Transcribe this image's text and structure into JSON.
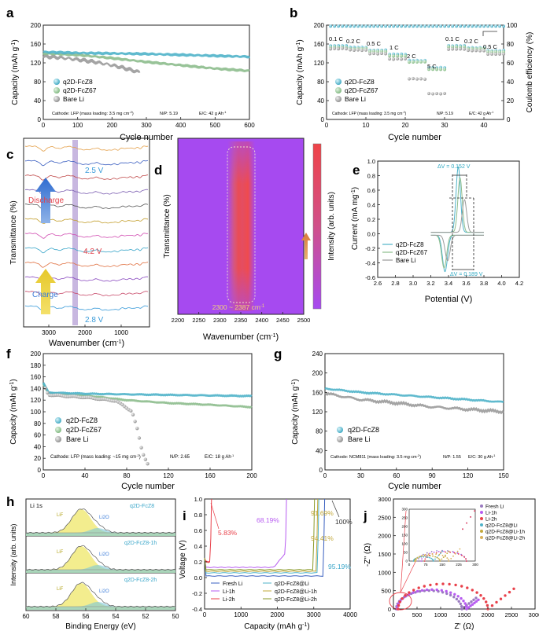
{
  "colors": {
    "fcz8": "#4fb3c9",
    "fcz67": "#8dbd8d",
    "bare": "#9a9a9a",
    "purple": "#b75cf0",
    "red": "#e8404a",
    "orange": "#e0a44c"
  },
  "panels": {
    "a": {
      "label": "a",
      "ylabel": "Capacity (mAh g",
      "xlabel": "Cycle number",
      "xticks": [
        "0",
        "100",
        "200",
        "300",
        "400",
        "500",
        "600"
      ],
      "yticks": [
        "0",
        "40",
        "80",
        "120",
        "160",
        "200"
      ],
      "legend": [
        "q2D-FcZ8",
        "q2D-FcZ67",
        "Bare Li"
      ],
      "info": [
        "Cathode: LFP (mass loading: 3.5 mg cm",
        "N/P: 5.19",
        "E/C: 42 g Ah"
      ],
      "chart_data": {
        "type": "line",
        "xlim": [
          0,
          600
        ],
        "ylim": [
          0,
          200
        ],
        "series": [
          {
            "name": "q2D-FcZ8",
            "x": [
              0,
              100,
              200,
              300,
              400,
              500,
              600
            ],
            "values": [
              143,
              141,
              140,
              139,
              137,
              135,
              133
            ]
          },
          {
            "name": "q2D-FcZ67",
            "x": [
              0,
              100,
              200,
              300,
              400,
              500,
              600
            ],
            "values": [
              140,
              137,
              130,
              122,
              115,
              108,
              103
            ]
          },
          {
            "name": "Bare Li",
            "x": [
              0,
              50,
              100,
              150,
              200,
              230,
              260,
              280
            ],
            "values": [
              134,
              131,
              127,
              122,
              115,
              110,
              104,
              100
            ]
          }
        ]
      }
    },
    "b": {
      "label": "b",
      "ylabel": "Capacity (mAh g",
      "y2label": "Coulomb efficiency (%)",
      "xlabel": "Cycle number",
      "xticks": [
        "0",
        "10",
        "20",
        "30",
        "40"
      ],
      "yticks": [
        "0",
        "40",
        "80",
        "120",
        "160",
        "200"
      ],
      "y2ticks": [
        "0",
        "20",
        "40",
        "60",
        "80",
        "100"
      ],
      "rates": [
        "0.1 C",
        "0.2 C",
        "0.5 C",
        "1 C",
        "2 C",
        "5 C",
        "0.1 C",
        "0.2 C",
        "0.5 C"
      ],
      "legend": [
        "q2D-FcZ8",
        "q2D-FcZ67",
        "Bare Li"
      ],
      "info": [
        "Cathode: LFP (mass loading: 3.5 mg cm",
        "N/P: 5.19",
        "E/C: 42 g Ah"
      ],
      "chart_data": {
        "type": "scatter",
        "xlim": [
          0,
          45
        ],
        "ylim": [
          0,
          200
        ],
        "steps": [
          {
            "rate": "0.1 C",
            "cycles": [
              1,
              5
            ],
            "fcz8": 156,
            "fcz67": 153,
            "bare": 150
          },
          {
            "rate": "0.2 C",
            "cycles": [
              6,
              10
            ],
            "fcz8": 153,
            "fcz67": 150,
            "bare": 147
          },
          {
            "rate": "0.5 C",
            "cycles": [
              11,
              15
            ],
            "fcz8": 147,
            "fcz67": 144,
            "bare": 140
          },
          {
            "rate": "1 C",
            "cycles": [
              16,
              20
            ],
            "fcz8": 138,
            "fcz67": 135,
            "bare": 128
          },
          {
            "rate": "2 C",
            "cycles": [
              21,
              25
            ],
            "fcz8": 125,
            "fcz67": 122,
            "bare": 86
          },
          {
            "rate": "5 C",
            "cycles": [
              26,
              30
            ],
            "fcz8": 110,
            "fcz67": 106,
            "bare": 55
          },
          {
            "rate": "0.1 C",
            "cycles": [
              31,
              35
            ],
            "fcz8": 156,
            "fcz67": 154,
            "bare": 149
          },
          {
            "rate": "0.2 C",
            "cycles": [
              36,
              40
            ],
            "fcz8": 152,
            "fcz67": 150,
            "bare": 146
          },
          {
            "rate": "0.5 C",
            "cycles": [
              41,
              45
            ],
            "fcz8": 146,
            "fcz67": 143,
            "bare": 139
          }
        ],
        "coulomb_efficiency": 99
      }
    },
    "c": {
      "label": "c",
      "ylabel": "Transmittance (%)",
      "xlabel": "Wavenumber (cm",
      "xticks": [
        "3000",
        "2000",
        "1000"
      ],
      "annotations": [
        "2.5 V",
        "Discharge",
        "4.2 V",
        "Charge",
        "2.8 V"
      ]
    },
    "d": {
      "label": "d",
      "ylabel": "Transmittance (%)",
      "xlabel": "Wavenumber (cm",
      "xticks": [
        "2200",
        "2250",
        "2300",
        "2350",
        "2400",
        "2450",
        "2500"
      ],
      "band": "2300 ~ 2387 cm",
      "cbar": "Intensity (arb. units)"
    },
    "e": {
      "label": "e",
      "ylabel": "Current (mA mg",
      "xlabel": "Potential (V)",
      "xticks": [
        "2.6",
        "2.8",
        "3.0",
        "3.2",
        "3.4",
        "3.6",
        "3.8",
        "4.0",
        "4.2"
      ],
      "yticks": [
        "-0.6",
        "-0.4",
        "-0.2",
        "0.0",
        "0.2",
        "0.4",
        "0.6",
        "0.8",
        "1.0"
      ],
      "legend": [
        "q2D-FcZ8",
        "q2D-FcZ67",
        "Bare Li"
      ],
      "dv1": "ΔV = 0.152 V",
      "dv2": "ΔV = 0.189 V",
      "chart_data": {
        "type": "line",
        "xlim": [
          2.6,
          4.2
        ],
        "ylim": [
          -0.6,
          1.0
        ],
        "peaks": [
          {
            "name": "q2D-FcZ8",
            "ox": [
              3.51,
              0.9
            ],
            "red": [
              3.36,
              -0.5
            ]
          },
          {
            "name": "q2D-FcZ67",
            "ox": [
              3.53,
              0.75
            ],
            "red": [
              3.35,
              -0.45
            ]
          },
          {
            "name": "Bare Li",
            "ox": [
              3.58,
              0.45
            ],
            "red": [
              3.39,
              -0.35
            ]
          }
        ]
      }
    },
    "f": {
      "label": "f",
      "ylabel": "Capacity (mAh g",
      "xlabel": "Cycle number",
      "xticks": [
        "0",
        "40",
        "80",
        "120",
        "160",
        "200"
      ],
      "yticks": [
        "0",
        "20",
        "40",
        "60",
        "80",
        "100",
        "120",
        "140",
        "160",
        "180",
        "200"
      ],
      "legend": [
        "q2D-FcZ8",
        "q2D-FcZ67",
        "Bare Li"
      ],
      "info": [
        "Cathode: LFP (mass loading: ~15 mg cm",
        "N/P: 2.65",
        "E/C: 18 g Ah"
      ],
      "chart_data": {
        "type": "line",
        "xlim": [
          0,
          200
        ],
        "ylim": [
          0,
          200
        ],
        "series": [
          {
            "name": "q2D-FcZ8",
            "x": [
              0,
              5,
              40,
              80,
              120,
              160,
              200
            ],
            "values": [
              150,
              133,
              131,
              130,
              129,
              128,
              127
            ]
          },
          {
            "name": "q2D-FcZ67",
            "x": [
              0,
              5,
              40,
              80,
              120,
              160,
              200
            ],
            "values": [
              148,
              132,
              128,
              120,
              115,
              112,
              108
            ]
          },
          {
            "name": "Bare Li",
            "x": [
              0,
              5,
              40,
              70,
              85,
              90,
              95,
              100
            ],
            "values": [
              148,
              130,
              125,
              118,
              100,
              70,
              30,
              10
            ]
          }
        ]
      }
    },
    "g": {
      "label": "g",
      "ylabel": "Capacity (mAh g",
      "xlabel": "Cycle number",
      "xticks": [
        "0",
        "30",
        "60",
        "90",
        "120",
        "150"
      ],
      "yticks": [
        "0",
        "40",
        "80",
        "120",
        "160",
        "200",
        "240"
      ],
      "legend": [
        "q2D-FcZ8",
        "Bare Li"
      ],
      "info": [
        "Cathode: NCM811 (mass loading: 3.5 mg cm",
        "N/P: 1.55",
        "E/C: 30 g Ah"
      ],
      "chart_data": {
        "type": "line",
        "xlim": [
          0,
          150
        ],
        "ylim": [
          0,
          240
        ],
        "series": [
          {
            "name": "q2D-FcZ8",
            "x": [
              0,
              30,
              60,
              90,
              120,
              150
            ],
            "values": [
              168,
              160,
              155,
              150,
              145,
              140
            ]
          },
          {
            "name": "Bare Li",
            "x": [
              0,
              30,
              60,
              90,
              120,
              150
            ],
            "values": [
              158,
              145,
              138,
              130,
              125,
              120
            ]
          }
        ]
      }
    },
    "h": {
      "label": "h",
      "ylabel": "Intensity (arb. units)",
      "xlabel": "Binding Energy (eV)",
      "xticks": [
        "60",
        "58",
        "56",
        "54",
        "52",
        "50"
      ],
      "title": "Li 1s",
      "samples": [
        "q2D-FcZ8",
        "q2D-FcZ8-1h",
        "q2D-FcZ8-2h"
      ],
      "peaks": [
        "LiF",
        "Li2O"
      ]
    },
    "i": {
      "label": "i",
      "ylabel": "Voltage (V)",
      "xlabel": "Capacity (mAh g",
      "xticks": [
        "0",
        "1000",
        "2000",
        "3000",
        "4000"
      ],
      "yticks": [
        "-0.4",
        "-0.2",
        "0.0",
        "0.2",
        "0.4",
        "0.6",
        "0.8",
        "1.0"
      ],
      "legend": [
        "Fresh Li",
        "Li-1h",
        "Li-2h",
        "q2D-FcZ8@Li",
        "q2D-FcZ8@Li-1h",
        "q2D-FcZ8@Li-2h"
      ],
      "percents": [
        "5.83%",
        "68.19%",
        "91.69%",
        "100%",
        "94.41%",
        "95.19%"
      ],
      "chart_data": {
        "type": "line",
        "xlim": [
          0,
          4000
        ],
        "ylim": [
          -0.4,
          1.0
        ],
        "utilization": [
          {
            "name": "Fresh Li",
            "capacity": 3300,
            "percent": 100
          },
          {
            "name": "Li-1h",
            "capacity": 2250,
            "percent": 68.19
          },
          {
            "name": "Li-2h",
            "capacity": 190,
            "percent": 5.83
          },
          {
            "name": "q2D-FcZ8@Li",
            "capacity": 3140,
            "percent": 95.19
          },
          {
            "name": "q2D-FcZ8@Li-1h",
            "capacity": 3110,
            "percent": 94.41
          },
          {
            "name": "q2D-FcZ8@Li-2h",
            "capacity": 3020,
            "percent": 91.69
          }
        ]
      }
    },
    "j": {
      "label": "j",
      "ylabel": "-Z'' (Ω)",
      "xlabel": "Z' (Ω)",
      "xticks": [
        "0",
        "500",
        "1000",
        "1500",
        "2000",
        "2500",
        "3000"
      ],
      "yticks": [
        "0",
        "500",
        "1000",
        "1500",
        "2000",
        "2500",
        "3000"
      ],
      "inset_xticks": [
        "0",
        "75",
        "150",
        "225",
        "300"
      ],
      "inset_yticks": [
        "0",
        "50",
        "100",
        "150",
        "200",
        "250",
        "300"
      ],
      "legend": [
        "Fresh Li",
        "Li-1h",
        "Li-2h",
        "q2D-FcZ8@Li",
        "q2D-FcZ8@Li-1h",
        "q2D-FcZ8@Li-2h"
      ],
      "chart_data": {
        "type": "scatter",
        "xlim": [
          0,
          3000
        ],
        "ylim": [
          0,
          3000
        ],
        "semicircles": [
          {
            "name": "Fresh Li",
            "start": 60,
            "end": 1450,
            "tail": 1750
          },
          {
            "name": "Li-1h",
            "start": 80,
            "end": 1550,
            "tail": 1800
          },
          {
            "name": "Li-2h",
            "start": 100,
            "end": 2000,
            "tail": 2550
          },
          {
            "name": "q2D-FcZ8@Li",
            "start": 20,
            "end": 110,
            "tail": 150
          },
          {
            "name": "q2D-FcZ8@Li-1h",
            "start": 25,
            "end": 140,
            "tail": 180
          },
          {
            "name": "q2D-FcZ8@Li-2h",
            "start": 30,
            "end": 180,
            "tail": 230
          }
        ]
      }
    }
  }
}
